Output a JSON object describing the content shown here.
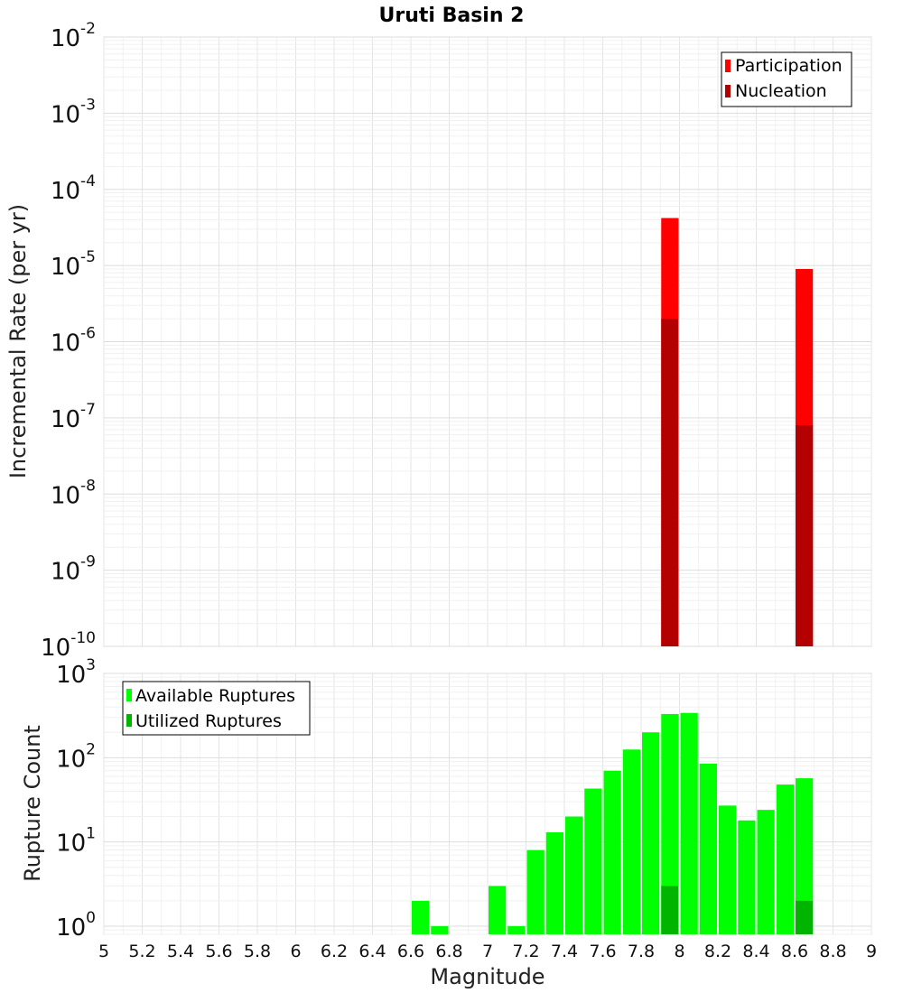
{
  "chart_data": [
    {
      "type": "bar",
      "title": "Uruti Basin 2",
      "xlabel": "",
      "ylabel": "Incremental Rate (per yr)",
      "yscale": "log",
      "ylim": [
        1e-10,
        0.01
      ],
      "xlim": [
        5,
        9
      ],
      "y_tick_bases": [
        "10",
        "10",
        "10",
        "10",
        "10",
        "10",
        "10",
        "10",
        "10"
      ],
      "y_tick_exponents": [
        "-10",
        "-9",
        "-8",
        "-7",
        "-6",
        "-5",
        "-4",
        "-3",
        "-2"
      ],
      "legend": {
        "position": "top-right",
        "entries": [
          "Participation",
          "Nucleation"
        ]
      },
      "series": [
        {
          "name": "Participation",
          "color": "#ff0000",
          "points": [
            {
              "x": 7.95,
              "y": 4.2e-05
            },
            {
              "x": 8.65,
              "y": 9e-06
            }
          ]
        },
        {
          "name": "Nucleation",
          "color": "#b30000",
          "points": [
            {
              "x": 7.95,
              "y": 2e-06
            },
            {
              "x": 8.65,
              "y": 8e-08
            }
          ]
        }
      ],
      "grid": true
    },
    {
      "type": "bar",
      "title": "",
      "xlabel": "Magnitude",
      "ylabel": "Rupture Count",
      "yscale": "log",
      "ylim": [
        0.8,
        1000
      ],
      "xlim": [
        5,
        9
      ],
      "y_tick_bases": [
        "10",
        "10",
        "10",
        "10"
      ],
      "y_tick_exponents": [
        "0",
        "1",
        "2",
        "3"
      ],
      "x_tick_labels": [
        "5",
        "5.2",
        "5.4",
        "5.6",
        "5.8",
        "6",
        "6.2",
        "6.4",
        "6.6",
        "6.8",
        "7",
        "7.2",
        "7.4",
        "7.6",
        "7.8",
        "8",
        "8.2",
        "8.4",
        "8.6",
        "8.8",
        "9"
      ],
      "legend": {
        "position": "top-left",
        "entries": [
          "Available Ruptures",
          "Utilized Ruptures"
        ]
      },
      "series": [
        {
          "name": "Available Ruptures",
          "color": "#00ff00",
          "points": [
            {
              "x": 6.65,
              "y": 2
            },
            {
              "x": 6.75,
              "y": 1
            },
            {
              "x": 7.05,
              "y": 3
            },
            {
              "x": 7.15,
              "y": 1
            },
            {
              "x": 7.25,
              "y": 8
            },
            {
              "x": 7.35,
              "y": 13
            },
            {
              "x": 7.45,
              "y": 20
            },
            {
              "x": 7.55,
              "y": 43
            },
            {
              "x": 7.65,
              "y": 70
            },
            {
              "x": 7.75,
              "y": 125
            },
            {
              "x": 7.85,
              "y": 200
            },
            {
              "x": 7.95,
              "y": 330
            },
            {
              "x": 8.05,
              "y": 340
            },
            {
              "x": 8.15,
              "y": 85
            },
            {
              "x": 8.25,
              "y": 27
            },
            {
              "x": 8.35,
              "y": 18
            },
            {
              "x": 8.45,
              "y": 24
            },
            {
              "x": 8.55,
              "y": 48
            },
            {
              "x": 8.65,
              "y": 57
            }
          ]
        },
        {
          "name": "Utilized Ruptures",
          "color": "#00b400",
          "points": [
            {
              "x": 7.95,
              "y": 3
            },
            {
              "x": 8.65,
              "y": 2
            }
          ]
        }
      ],
      "grid": true
    }
  ]
}
